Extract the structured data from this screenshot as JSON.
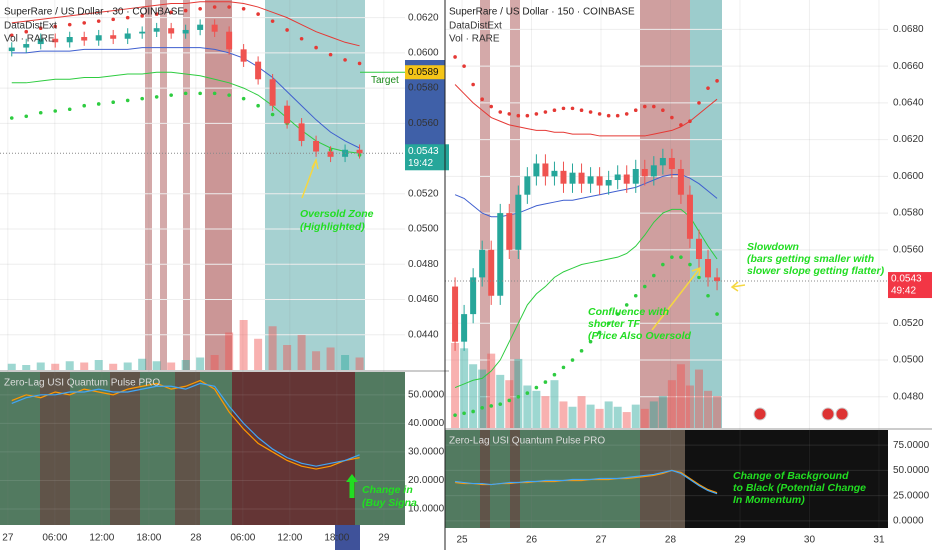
{
  "chart_data": [
    {
      "type": "candlestick",
      "title": "SuperRare / US Dollar · 30 · COINBASE",
      "subtitles": [
        "DataDistExt",
        "Vol · RARE"
      ],
      "up_color": "#26a69a",
      "down_color": "#ef5350",
      "x": [
        0.5,
        2.35,
        4.2,
        6.05,
        7.9,
        9.75,
        11.6,
        13.45,
        15.3,
        17.15,
        19,
        20.85,
        22.7,
        24.55,
        26.4,
        28.25,
        30.1,
        31.95,
        33.8,
        35.65,
        37.5,
        39.35,
        41.2,
        43.05,
        44.9
      ],
      "open": [
        0.0601,
        0.0603,
        0.0605,
        0.0608,
        0.0606,
        0.0609,
        0.0607,
        0.061,
        0.0608,
        0.0611,
        0.0612,
        0.0614,
        0.0611,
        0.0613,
        0.0616,
        0.0612,
        0.0602,
        0.0595,
        0.0585,
        0.057,
        0.056,
        0.055,
        0.0544,
        0.0541,
        0.0545
      ],
      "high": [
        0.0606,
        0.0608,
        0.0611,
        0.0611,
        0.0612,
        0.0612,
        0.0613,
        0.0613,
        0.0614,
        0.0615,
        0.0617,
        0.0617,
        0.0616,
        0.0619,
        0.0619,
        0.0615,
        0.0605,
        0.0598,
        0.0588,
        0.0573,
        0.0563,
        0.0553,
        0.0547,
        0.0548,
        0.0548
      ],
      "low": [
        0.0598,
        0.06,
        0.0602,
        0.0603,
        0.0603,
        0.0604,
        0.0604,
        0.0605,
        0.0605,
        0.0608,
        0.0609,
        0.0608,
        0.0608,
        0.061,
        0.0609,
        0.0599,
        0.0592,
        0.0582,
        0.0567,
        0.0557,
        0.0547,
        0.0541,
        0.0538,
        0.0538,
        0.054
      ],
      "close": [
        0.0603,
        0.0605,
        0.0608,
        0.0606,
        0.0609,
        0.0607,
        0.061,
        0.0608,
        0.0611,
        0.0612,
        0.0614,
        0.0611,
        0.0613,
        0.0616,
        0.0612,
        0.0602,
        0.0595,
        0.0585,
        0.057,
        0.056,
        0.055,
        0.0544,
        0.0541,
        0.0545,
        0.0543
      ],
      "volume": [
        5,
        4,
        6,
        5,
        7,
        6,
        8,
        5,
        6,
        9,
        7,
        6,
        8,
        10,
        12,
        30,
        40,
        25,
        35,
        20,
        28,
        15,
        18,
        12,
        10
      ],
      "series": [
        {
          "style": "line",
          "color": "#e53935",
          "values": [
            0.0617,
            0.0618,
            0.0619,
            0.062,
            0.0621,
            0.0622,
            0.0623,
            0.0624,
            0.0625,
            0.0626,
            0.0627,
            0.0628,
            0.0628,
            0.0629,
            0.0629,
            0.0629,
            0.0628,
            0.0626,
            0.0623,
            0.062,
            0.0616,
            0.0612,
            0.0609,
            0.0606,
            0.0604
          ]
        },
        {
          "style": "dots",
          "color": "#e53935",
          "values": [
            0.061,
            0.0612,
            0.0614,
            0.0615,
            0.0616,
            0.0617,
            0.0618,
            0.0619,
            0.062,
            0.0621,
            0.0622,
            0.0623,
            0.0624,
            0.0625,
            0.0626,
            0.0626,
            0.0625,
            0.0622,
            0.0618,
            0.0613,
            0.0608,
            0.0603,
            0.0599,
            0.0596,
            0.0594
          ]
        },
        {
          "style": "line",
          "color": "#3f5fcf",
          "values": [
            0.06,
            0.06,
            0.0601,
            0.0601,
            0.0601,
            0.0602,
            0.0602,
            0.0602,
            0.0602,
            0.0603,
            0.0603,
            0.0603,
            0.0603,
            0.0603,
            0.0602,
            0.06,
            0.0597,
            0.0592,
            0.0586,
            0.0578,
            0.057,
            0.0562,
            0.0555,
            0.055,
            0.0546
          ]
        },
        {
          "style": "line",
          "color": "#2ecc40",
          "values": [
            0.0583,
            0.0583,
            0.0584,
            0.0585,
            0.0585,
            0.0586,
            0.0586,
            0.0587,
            0.0588,
            0.0588,
            0.0589,
            0.0589,
            0.0588,
            0.0587,
            0.0585,
            0.0583,
            0.058,
            0.0576,
            0.057,
            0.0563,
            0.0556,
            0.055,
            0.0546,
            0.0544,
            0.0543
          ]
        },
        {
          "style": "dots",
          "color": "#2ecc40",
          "values": [
            0.0563,
            0.0564,
            0.0566,
            0.0567,
            0.0568,
            0.057,
            0.0571,
            0.0572,
            0.0573,
            0.0574,
            0.0575,
            0.0576,
            0.0577,
            0.0577,
            0.0577,
            0.0576,
            0.0574,
            0.057,
            0.0565,
            0.056,
            0.0554,
            0.0549,
            0.0545,
            0.0543,
            0.0542
          ]
        }
      ],
      "xlim": [
        -1.0,
        50.7
      ],
      "xticks": [
        {
          "value": 0,
          "label": "27"
        },
        {
          "value": 6,
          "label": "06:00"
        },
        {
          "value": 12,
          "label": "12:00"
        },
        {
          "value": 18,
          "label": "18:00"
        },
        {
          "value": 24,
          "label": "28"
        },
        {
          "value": 30,
          "label": "06:00"
        },
        {
          "value": 36,
          "label": "12:00"
        },
        {
          "value": 42,
          "label": "18:00"
        },
        {
          "value": 48,
          "label": "29"
        }
      ],
      "ylim": [
        0.042,
        0.063
      ],
      "yticks": [
        {
          "value": 0.062,
          "label": "0.0620"
        },
        {
          "value": 0.06,
          "label": "0.0600"
        },
        {
          "value": 0.058,
          "label": "0.0580"
        },
        {
          "value": 0.056,
          "label": "0.0560"
        },
        {
          "value": 0.052,
          "label": "0.0520"
        },
        {
          "value": 0.05,
          "label": "0.0500"
        },
        {
          "value": 0.048,
          "label": "0.0480"
        },
        {
          "value": 0.046,
          "label": "0.0460"
        },
        {
          "value": 0.044,
          "label": "0.0440"
        }
      ],
      "last_price": {
        "value": 0.0543,
        "label": "0.0543"
      },
      "countdown": "19:42",
      "target": {
        "value": 0.0589,
        "label": "0.0589"
      },
      "target_text": "Target",
      "annotations": [
        [
          "Oversold Zone",
          "(Highlighted)"
        ],
        [
          "Change in",
          "(Buy Signa"
        ]
      ],
      "indicator": {
        "title": "Zero-Lag USI Quantum Pulse PRO",
        "ylim": [
          4.4,
          58
        ],
        "yticks": [
          {
            "value": 50,
            "label": "50.0000"
          },
          {
            "value": 40,
            "label": "40.0000"
          },
          {
            "value": 30,
            "label": "30.0000"
          },
          {
            "value": 20,
            "label": "20.0000"
          },
          {
            "value": 10,
            "label": "10.0000"
          }
        ],
        "series": [
          {
            "color": "#ff9800",
            "values": [
              48,
              50,
              49,
              51,
              50,
              52,
              51,
              50,
              52,
              53,
              54,
              52,
              53,
              55,
              52,
              44,
              38,
              33,
              30,
              27,
              25,
              24,
              25,
              27,
              28
            ]
          },
          {
            "color": "#42a5f5",
            "values": [
              47,
              49,
              50,
              50,
              51,
              51,
              52,
              51,
              51,
              52,
              53,
              53,
              52,
              54,
              53,
              46,
              40,
              35,
              31,
              28,
              26,
              25,
              26,
              27,
              29
            ]
          }
        ]
      }
    },
    {
      "type": "candlestick",
      "title": "SuperRare / US Dollar · 150 · COINBASE",
      "subtitles": [
        "DataDistExt",
        "Vol · RARE"
      ],
      "up_color": "#26a69a",
      "down_color": "#ef5350",
      "x": [
        24.9,
        25.03,
        25.16,
        25.29,
        25.42,
        25.55,
        25.68,
        25.81,
        25.94,
        26.07,
        26.2,
        26.33,
        26.46,
        26.59,
        26.72,
        26.85,
        26.98,
        27.11,
        27.24,
        27.37,
        27.5,
        27.63,
        27.76,
        27.89,
        28.02,
        28.15,
        28.28,
        28.41,
        28.54,
        28.67
      ],
      "open": [
        0.054,
        0.051,
        0.0525,
        0.0545,
        0.056,
        0.0535,
        0.058,
        0.056,
        0.059,
        0.06,
        0.0607,
        0.06,
        0.0603,
        0.0596,
        0.0602,
        0.0596,
        0.06,
        0.0595,
        0.0598,
        0.0601,
        0.0596,
        0.0604,
        0.06,
        0.0606,
        0.061,
        0.0604,
        0.059,
        0.0566,
        0.0555,
        0.0545
      ],
      "high": [
        0.0545,
        0.053,
        0.055,
        0.0565,
        0.0565,
        0.0585,
        0.0585,
        0.0595,
        0.0605,
        0.0612,
        0.0612,
        0.0608,
        0.0608,
        0.0607,
        0.0607,
        0.0605,
        0.0605,
        0.0603,
        0.0606,
        0.0606,
        0.0609,
        0.0609,
        0.0611,
        0.0615,
        0.0615,
        0.0609,
        0.0595,
        0.0571,
        0.056,
        0.055
      ],
      "low": [
        0.0505,
        0.0505,
        0.052,
        0.054,
        0.053,
        0.053,
        0.0555,
        0.0555,
        0.0585,
        0.0595,
        0.0595,
        0.0595,
        0.0591,
        0.0591,
        0.0591,
        0.0591,
        0.059,
        0.059,
        0.0593,
        0.0591,
        0.0591,
        0.0595,
        0.0595,
        0.0601,
        0.0599,
        0.0585,
        0.0561,
        0.055,
        0.054,
        0.0538
      ],
      "close": [
        0.051,
        0.0525,
        0.0545,
        0.056,
        0.0535,
        0.058,
        0.056,
        0.059,
        0.06,
        0.0607,
        0.06,
        0.0603,
        0.0596,
        0.0602,
        0.0596,
        0.06,
        0.0595,
        0.0598,
        0.0601,
        0.0596,
        0.0604,
        0.06,
        0.0606,
        0.061,
        0.0604,
        0.059,
        0.0566,
        0.0555,
        0.0545,
        0.0543
      ],
      "volume": [
        80,
        75,
        60,
        55,
        70,
        50,
        45,
        65,
        40,
        35,
        30,
        45,
        25,
        20,
        30,
        22,
        18,
        25,
        20,
        15,
        22,
        18,
        25,
        30,
        45,
        60,
        40,
        55,
        35,
        30
      ],
      "series": [
        {
          "style": "line",
          "color": "#e53935",
          "values": [
            0.065,
            0.0645,
            0.064,
            0.0636,
            0.0632,
            0.063,
            0.0628,
            0.0627,
            0.0626,
            0.0625,
            0.0625,
            0.0624,
            0.0624,
            0.0623,
            0.0623,
            0.0623,
            0.0622,
            0.0622,
            0.0622,
            0.0622,
            0.0622,
            0.0622,
            0.0623,
            0.0624,
            0.0625,
            0.0627,
            0.063,
            0.0634,
            0.0638,
            0.0642
          ]
        },
        {
          "style": "dots",
          "color": "#e53935",
          "values": [
            0.0665,
            0.066,
            0.065,
            0.0642,
            0.0638,
            0.0635,
            0.0634,
            0.0633,
            0.0633,
            0.0634,
            0.0635,
            0.0636,
            0.0637,
            0.0637,
            0.0636,
            0.0635,
            0.0634,
            0.0633,
            0.0633,
            0.0634,
            0.0636,
            0.0638,
            0.0638,
            0.0636,
            0.0632,
            0.0628,
            0.063,
            0.064,
            0.0648,
            0.0652
          ]
        },
        {
          "style": "line",
          "color": "#3f5fcf",
          "values": [
            0.059,
            0.0588,
            0.0584,
            0.058,
            0.0578,
            0.0578,
            0.0579,
            0.058,
            0.0582,
            0.0584,
            0.0585,
            0.0586,
            0.0587,
            0.0587,
            0.0588,
            0.0589,
            0.059,
            0.0591,
            0.0592,
            0.0593,
            0.0594,
            0.0596,
            0.0598,
            0.06,
            0.0601,
            0.0601,
            0.0599,
            0.0596,
            0.0592,
            0.0588
          ]
        },
        {
          "style": "line",
          "color": "#2ecc40",
          "values": [
            0.0485,
            0.0487,
            0.0489,
            0.049,
            0.0494,
            0.05,
            0.051,
            0.052,
            0.053,
            0.0536,
            0.054,
            0.0545,
            0.0548,
            0.055,
            0.0552,
            0.0553,
            0.0554,
            0.0555,
            0.0556,
            0.0558,
            0.0562,
            0.0568,
            0.0575,
            0.058,
            0.0582,
            0.0582,
            0.0578,
            0.057,
            0.0562,
            0.0555
          ]
        },
        {
          "style": "dots",
          "color": "#2ecc40",
          "values": [
            0.047,
            0.0471,
            0.0472,
            0.0474,
            0.0475,
            0.0476,
            0.0478,
            0.048,
            0.0482,
            0.0485,
            0.0488,
            0.0492,
            0.0496,
            0.05,
            0.0505,
            0.051,
            0.0515,
            0.052,
            0.0525,
            0.053,
            0.0535,
            0.054,
            0.0546,
            0.0552,
            0.0556,
            0.0556,
            0.0552,
            0.0545,
            0.0535,
            0.0525
          ]
        }
      ],
      "xlim": [
        24.755,
        31.13
      ],
      "xticks": [
        25,
        26,
        27,
        28,
        29,
        30,
        31
      ],
      "ylim": [
        0.0463,
        0.0696
      ],
      "yticks": [
        {
          "value": 0.068,
          "label": "0.0680"
        },
        {
          "value": 0.066,
          "label": "0.0660"
        },
        {
          "value": 0.064,
          "label": "0.0640"
        },
        {
          "value": 0.062,
          "label": "0.0620"
        },
        {
          "value": 0.06,
          "label": "0.0600"
        },
        {
          "value": 0.058,
          "label": "0.0580"
        },
        {
          "value": 0.056,
          "label": "0.0560"
        },
        {
          "value": 0.052,
          "label": "0.0520"
        },
        {
          "value": 0.05,
          "label": "0.0500"
        },
        {
          "value": 0.048,
          "label": "0.0480"
        }
      ],
      "last_price": {
        "value": 0.0543,
        "label": "0.0543"
      },
      "countdown": "49:42",
      "annotations": [
        [
          "Slowdown",
          "(bars getting smaller with",
          "slower slope getting flatter)"
        ],
        [
          "Confluence with",
          "shorter TF",
          "(Price Also Oversold"
        ],
        [
          "Change of Background",
          "to Black (Potential Change",
          "In Momentum)"
        ]
      ],
      "indicator": {
        "title": "Zero-Lag USI Quantum Pulse PRO",
        "ylim": [
          -7,
          90
        ],
        "yticks": [
          {
            "value": 75,
            "label": "75.0000"
          },
          {
            "value": 50,
            "label": "50.0000"
          },
          {
            "value": 25,
            "label": "25.0000"
          },
          {
            "value": 0,
            "label": "0.0000"
          }
        ],
        "series": [
          {
            "color": "#ff9800",
            "values": [
              38,
              37,
              37,
              36,
              36,
              37,
              37,
              38,
              38,
              39,
              39,
              39,
              40,
              40,
              40,
              41,
              41,
              41,
              42,
              42,
              43,
              44,
              45,
              47,
              50,
              48,
              42,
              36,
              31,
              28
            ]
          },
          {
            "color": "#42a5f5",
            "values": [
              39,
              38,
              37,
              37,
              36,
              37,
              38,
              38,
              39,
              39,
              40,
              40,
              40,
              41,
              41,
              41,
              42,
              42,
              42,
              43,
              44,
              45,
              46,
              48,
              50,
              47,
              41,
              35,
              30,
              27
            ]
          }
        ]
      }
    }
  ]
}
